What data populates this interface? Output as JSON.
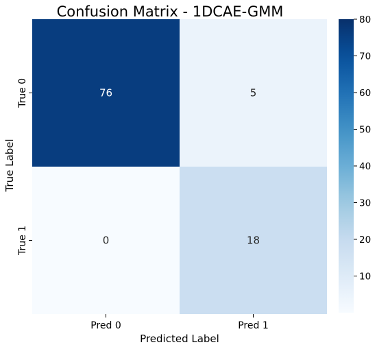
{
  "chart_data": {
    "type": "heatmap",
    "title": "Confusion Matrix - 1DCAE-GMM",
    "xlabel": "Predicted Label",
    "ylabel": "True Label",
    "x_categories": [
      "Pred 0",
      "Pred 1"
    ],
    "y_categories": [
      "True 0",
      "True 1"
    ],
    "values": [
      [
        76,
        5
      ],
      [
        0,
        18
      ]
    ],
    "colormap": "Blues",
    "colorbar": {
      "range": [
        0,
        80
      ],
      "ticks": [
        10,
        20,
        30,
        40,
        50,
        60,
        70,
        80
      ]
    },
    "grid": false,
    "legend": "none"
  }
}
